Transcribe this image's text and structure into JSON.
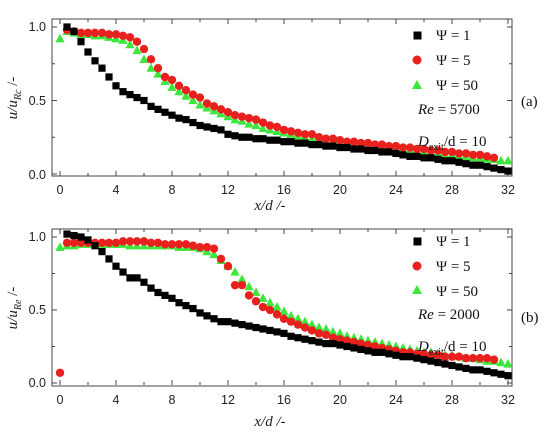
{
  "chart_data": [
    {
      "type": "scatter",
      "panel_label": "(a)",
      "xlabel_var": "x/d",
      "xlabel_unit": "/-",
      "ylabel_main": "u/u",
      "ylabel_sub": "Rc",
      "ylabel_unit": "/-",
      "xlim": [
        0,
        32
      ],
      "ylim": [
        0,
        1.0
      ],
      "xticks": [
        "0",
        "4",
        "8",
        "12",
        "16",
        "20",
        "24",
        "28",
        "32"
      ],
      "yticks": [
        "0.0",
        "0.5",
        "1.0"
      ],
      "legend_position": "top-right",
      "annotations": {
        "re_label": "Re",
        "re_value": " = 5700",
        "dexit_main": "D",
        "dexit_sub": "exit",
        "dexit_rest": "/d = 10"
      },
      "series": [
        {
          "name": "Ψ = 1",
          "marker": "square",
          "color": "#000000",
          "x": [
            0.5,
            1.0,
            1.5,
            2.0,
            2.5,
            3.0,
            3.5,
            4.0,
            4.5,
            5.0,
            5.5,
            6.0,
            6.5,
            7.0,
            7.5,
            8.0,
            8.5,
            9.0,
            9.5,
            10.0,
            10.5,
            11.0,
            11.5,
            12.0,
            12.5,
            13.0,
            13.5,
            14.0,
            14.5,
            15.0,
            15.5,
            16.0,
            16.5,
            17.0,
            17.5,
            18.0,
            18.5,
            19.0,
            19.5,
            20.0,
            20.5,
            21.0,
            21.5,
            22.0,
            22.5,
            23.0,
            23.5,
            24.0,
            24.5,
            25.0,
            25.5,
            26.0,
            26.5,
            27.0,
            27.5,
            28.0,
            28.5,
            29.0,
            29.5,
            30.0,
            30.5,
            31.0,
            31.5,
            32.0
          ],
          "y": [
            1.0,
            0.97,
            0.9,
            0.83,
            0.77,
            0.72,
            0.66,
            0.6,
            0.56,
            0.54,
            0.52,
            0.5,
            0.46,
            0.44,
            0.42,
            0.4,
            0.38,
            0.37,
            0.35,
            0.33,
            0.32,
            0.31,
            0.3,
            0.27,
            0.26,
            0.25,
            0.25,
            0.24,
            0.24,
            0.23,
            0.23,
            0.22,
            0.22,
            0.21,
            0.21,
            0.2,
            0.2,
            0.19,
            0.19,
            0.18,
            0.18,
            0.17,
            0.17,
            0.16,
            0.16,
            0.15,
            0.15,
            0.14,
            0.13,
            0.12,
            0.12,
            0.11,
            0.11,
            0.1,
            0.09,
            0.09,
            0.08,
            0.07,
            0.06,
            0.06,
            0.05,
            0.04,
            0.03,
            0.02
          ]
        },
        {
          "name": "Ψ = 5",
          "marker": "circle",
          "color": "#e8201e",
          "x": [
            0.5,
            1.0,
            1.5,
            2.0,
            2.5,
            3.0,
            3.5,
            4.0,
            4.5,
            5.0,
            5.5,
            6.0,
            6.5,
            7.0,
            7.5,
            8.0,
            8.5,
            9.0,
            9.5,
            10.0,
            10.5,
            11.0,
            11.5,
            12.0,
            12.5,
            13.0,
            13.5,
            14.0,
            14.5,
            15.0,
            15.5,
            16.0,
            16.5,
            17.0,
            17.5,
            18.0,
            18.5,
            19.0,
            19.5,
            20.0,
            20.5,
            21.0,
            21.5,
            22.0,
            22.5,
            23.0,
            23.5,
            24.0,
            24.5,
            25.0,
            25.5,
            26.0,
            26.5,
            27.0,
            27.5,
            28.0,
            28.5,
            29.0,
            29.5,
            30.0,
            30.5,
            31.0
          ],
          "y": [
            0.98,
            0.97,
            0.96,
            0.96,
            0.96,
            0.96,
            0.95,
            0.95,
            0.94,
            0.93,
            0.9,
            0.85,
            0.78,
            0.72,
            0.66,
            0.64,
            0.6,
            0.57,
            0.54,
            0.52,
            0.48,
            0.46,
            0.44,
            0.42,
            0.4,
            0.39,
            0.38,
            0.37,
            0.35,
            0.33,
            0.32,
            0.3,
            0.29,
            0.28,
            0.27,
            0.27,
            0.25,
            0.24,
            0.24,
            0.23,
            0.22,
            0.22,
            0.21,
            0.21,
            0.2,
            0.2,
            0.19,
            0.19,
            0.18,
            0.18,
            0.17,
            0.17,
            0.16,
            0.16,
            0.15,
            0.15,
            0.14,
            0.14,
            0.13,
            0.13,
            0.12,
            0.11
          ]
        },
        {
          "name": "Ψ = 50",
          "marker": "triangle",
          "color": "#3ce63a",
          "x": [
            0.0,
            0.5,
            1.0,
            1.5,
            2.0,
            2.5,
            3.0,
            3.5,
            4.0,
            4.5,
            5.0,
            5.5,
            6.0,
            6.5,
            7.0,
            7.5,
            8.0,
            8.5,
            9.0,
            9.5,
            10.0,
            10.5,
            11.0,
            11.5,
            12.0,
            12.5,
            13.0,
            13.5,
            14.0,
            14.5,
            15.0,
            15.5,
            16.0,
            16.5,
            17.0,
            17.5,
            18.0,
            18.5,
            19.0,
            19.5,
            20.0,
            20.5,
            21.0,
            21.5,
            22.0,
            22.5,
            23.0,
            23.5,
            24.0,
            24.5,
            25.0,
            25.5,
            26.0,
            26.5,
            27.0,
            27.5,
            28.0,
            28.5,
            29.0,
            29.5,
            30.0,
            30.5,
            31.0,
            31.5,
            32.0
          ],
          "y": [
            0.92,
            0.97,
            0.96,
            0.95,
            0.95,
            0.94,
            0.94,
            0.93,
            0.92,
            0.91,
            0.88,
            0.84,
            0.78,
            0.72,
            0.68,
            0.63,
            0.59,
            0.56,
            0.53,
            0.5,
            0.47,
            0.45,
            0.43,
            0.41,
            0.39,
            0.37,
            0.36,
            0.34,
            0.33,
            0.31,
            0.3,
            0.29,
            0.28,
            0.27,
            0.26,
            0.25,
            0.24,
            0.23,
            0.22,
            0.22,
            0.21,
            0.21,
            0.2,
            0.19,
            0.19,
            0.18,
            0.18,
            0.17,
            0.17,
            0.16,
            0.16,
            0.15,
            0.15,
            0.14,
            0.14,
            0.13,
            0.13,
            0.12,
            0.12,
            0.11,
            0.11,
            0.1,
            0.1,
            0.09,
            0.09
          ]
        }
      ]
    },
    {
      "type": "scatter",
      "panel_label": "(b)",
      "xlabel_var": "x/d",
      "xlabel_unit": "/-",
      "ylabel_main": "u/u",
      "ylabel_sub": "Re",
      "ylabel_unit": "/-",
      "xlim": [
        0,
        32
      ],
      "ylim": [
        0,
        1.0
      ],
      "xticks": [
        "0",
        "4",
        "8",
        "12",
        "16",
        "20",
        "24",
        "28",
        "32"
      ],
      "yticks": [
        "0.0",
        "0.5",
        "1.0"
      ],
      "legend_position": "top-right",
      "annotations": {
        "re_label": "Re",
        "re_value": " = 2000",
        "dexit_main": "D",
        "dexit_sub": "exit",
        "dexit_rest": "/d = 10"
      },
      "series": [
        {
          "name": "Ψ = 1",
          "marker": "square",
          "color": "#000000",
          "x": [
            0.5,
            1.0,
            1.5,
            2.0,
            2.5,
            3.0,
            3.5,
            4.0,
            4.5,
            5.0,
            5.5,
            6.0,
            6.5,
            7.0,
            7.5,
            8.0,
            8.5,
            9.0,
            9.5,
            10.0,
            10.5,
            11.0,
            11.5,
            12.0,
            12.5,
            13.0,
            13.5,
            14.0,
            14.5,
            15.0,
            15.5,
            16.0,
            16.5,
            17.0,
            17.5,
            18.0,
            18.5,
            19.0,
            19.5,
            20.0,
            20.5,
            21.0,
            21.5,
            22.0,
            22.5,
            23.0,
            23.5,
            24.0,
            24.5,
            25.0,
            25.5,
            26.0,
            26.5,
            27.0,
            27.5,
            28.0,
            28.5,
            29.0,
            29.5,
            30.0,
            30.5,
            31.0,
            31.5,
            32.0
          ],
          "y": [
            1.02,
            1.01,
            1.0,
            0.98,
            0.94,
            0.9,
            0.85,
            0.8,
            0.76,
            0.72,
            0.72,
            0.69,
            0.65,
            0.62,
            0.6,
            0.58,
            0.55,
            0.53,
            0.51,
            0.48,
            0.46,
            0.44,
            0.42,
            0.42,
            0.41,
            0.4,
            0.39,
            0.38,
            0.37,
            0.36,
            0.35,
            0.34,
            0.32,
            0.31,
            0.3,
            0.29,
            0.28,
            0.27,
            0.27,
            0.26,
            0.25,
            0.24,
            0.23,
            0.22,
            0.21,
            0.21,
            0.2,
            0.19,
            0.18,
            0.18,
            0.17,
            0.16,
            0.15,
            0.14,
            0.13,
            0.12,
            0.11,
            0.1,
            0.09,
            0.09,
            0.08,
            0.07,
            0.06,
            0.05
          ]
        },
        {
          "name": "Ψ = 5",
          "marker": "circle",
          "color": "#e8201e",
          "x": [
            0.0,
            0.5,
            1.0,
            1.5,
            2.0,
            2.5,
            3.0,
            3.5,
            4.0,
            4.5,
            5.0,
            5.5,
            6.0,
            6.5,
            7.0,
            7.5,
            8.0,
            8.5,
            9.0,
            9.5,
            10.0,
            10.5,
            11.0,
            11.5,
            12.0,
            12.5,
            13.0,
            13.5,
            14.0,
            14.5,
            15.0,
            15.5,
            16.0,
            16.5,
            17.0,
            17.5,
            18.0,
            18.5,
            19.0,
            19.5,
            20.0,
            20.5,
            21.0,
            21.5,
            22.0,
            22.5,
            23.0,
            23.5,
            24.0,
            24.5,
            25.0,
            25.5,
            26.0,
            26.5,
            27.0,
            27.5,
            28.0,
            28.5,
            29.0,
            29.5,
            30.0,
            30.5,
            31.0
          ],
          "y": [
            0.07,
            0.96,
            0.96,
            0.96,
            0.96,
            0.96,
            0.96,
            0.96,
            0.96,
            0.97,
            0.97,
            0.97,
            0.97,
            0.96,
            0.96,
            0.95,
            0.95,
            0.95,
            0.95,
            0.94,
            0.93,
            0.93,
            0.92,
            0.85,
            0.8,
            0.67,
            0.67,
            0.6,
            0.56,
            0.52,
            0.5,
            0.47,
            0.44,
            0.42,
            0.4,
            0.38,
            0.36,
            0.34,
            0.33,
            0.31,
            0.3,
            0.29,
            0.28,
            0.27,
            0.26,
            0.25,
            0.24,
            0.23,
            0.22,
            0.21,
            0.21,
            0.2,
            0.2,
            0.19,
            0.19,
            0.18,
            0.18,
            0.18,
            0.17,
            0.17,
            0.17,
            0.17,
            0.16
          ]
        },
        {
          "name": "Ψ = 50",
          "marker": "triangle",
          "color": "#3ce63a",
          "x": [
            0.0,
            0.5,
            1.0,
            1.5,
            2.0,
            2.5,
            3.0,
            3.5,
            4.0,
            4.5,
            5.0,
            5.5,
            6.0,
            6.5,
            7.0,
            7.5,
            8.0,
            8.5,
            9.0,
            9.5,
            10.0,
            10.5,
            11.0,
            11.5,
            12.0,
            12.5,
            13.0,
            13.5,
            14.0,
            14.5,
            15.0,
            15.5,
            16.0,
            16.5,
            17.0,
            17.5,
            18.0,
            18.5,
            19.0,
            19.5,
            20.0,
            20.5,
            21.0,
            21.5,
            22.0,
            22.5,
            23.0,
            23.5,
            24.0,
            24.5,
            25.0,
            25.5,
            26.0,
            26.5,
            27.0,
            27.5,
            28.0,
            28.5,
            29.0,
            29.5,
            30.0,
            30.5,
            31.0,
            31.5,
            32.0
          ],
          "y": [
            0.93,
            0.94,
            0.94,
            0.95,
            0.95,
            0.95,
            0.95,
            0.95,
            0.95,
            0.95,
            0.94,
            0.94,
            0.94,
            0.94,
            0.94,
            0.94,
            0.94,
            0.93,
            0.93,
            0.93,
            0.92,
            0.9,
            0.88,
            0.84,
            0.8,
            0.76,
            0.71,
            0.66,
            0.62,
            0.58,
            0.55,
            0.52,
            0.49,
            0.46,
            0.44,
            0.42,
            0.4,
            0.38,
            0.37,
            0.35,
            0.34,
            0.32,
            0.31,
            0.3,
            0.29,
            0.28,
            0.27,
            0.26,
            0.25,
            0.24,
            0.23,
            0.22,
            0.21,
            0.21,
            0.2,
            0.19,
            0.19,
            0.18,
            0.17,
            0.17,
            0.16,
            0.15,
            0.15,
            0.14,
            0.13
          ]
        }
      ]
    }
  ]
}
